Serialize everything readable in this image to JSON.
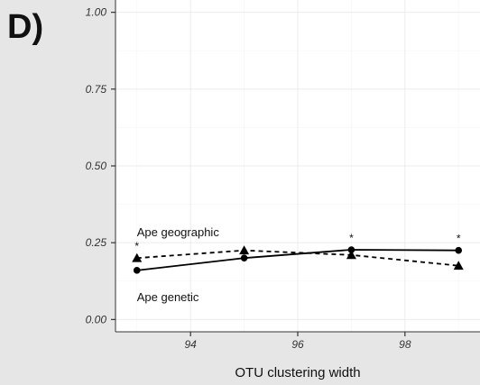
{
  "panel_label": "D)",
  "chart_data": {
    "type": "line",
    "title": "",
    "xlabel": "OTU clustering width",
    "ylabel": "",
    "xlim": [
      92.6,
      99.4
    ],
    "ylim": [
      -0.04,
      1.04
    ],
    "x_ticks": [
      94,
      96,
      98
    ],
    "x_tick_labels": [
      "94",
      "96",
      "98"
    ],
    "y_ticks": [
      0.0,
      0.25,
      0.5,
      0.75,
      1.0
    ],
    "y_tick_labels": [
      "0.00",
      "0.25",
      "0.50",
      "0.75",
      "1.00"
    ],
    "grid": true,
    "series": [
      {
        "label": "Ape geographic",
        "line_style": "dashed",
        "marker": "triangle",
        "x": [
          93,
          95,
          97,
          99
        ],
        "y": [
          0.2,
          0.225,
          0.21,
          0.175
        ]
      },
      {
        "label": "Ape genetic",
        "line_style": "solid",
        "marker": "circle",
        "x": [
          93,
          95,
          97,
          99
        ],
        "y": [
          0.16,
          0.2,
          0.227,
          0.225
        ]
      }
    ],
    "significance_markers": [
      {
        "x": 93,
        "y": 0.2,
        "text": "*"
      },
      {
        "x": 97,
        "y": 0.227,
        "text": "*"
      },
      {
        "x": 99,
        "y": 0.225,
        "text": "*"
      }
    ],
    "colors": {
      "panel_bg": "#ffffff",
      "grid": "#ececec",
      "line": "#000000",
      "page_bg": "#e6e6e6"
    }
  }
}
